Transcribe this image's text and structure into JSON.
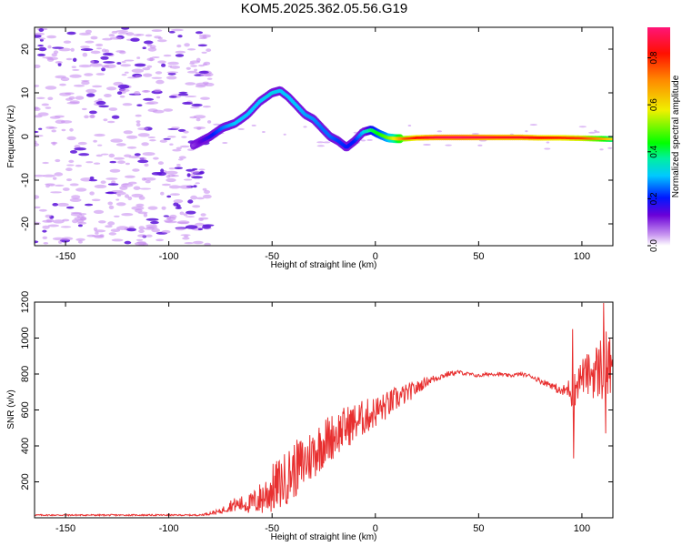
{
  "title": "KOM5.2025.362.05.56.G19",
  "colors": {
    "snr_line": "#e83030",
    "spec_speckle": "#c890f0",
    "spec_core": "#5a10d8"
  },
  "chart_data": [
    {
      "type": "heatmap",
      "name": "spectrogram",
      "xlabel": "Height of straight line (km)",
      "ylabel": "Frequency (Hz)",
      "xlim": [
        -165,
        115
      ],
      "ylim": [
        -25,
        25
      ],
      "xticks": [
        -150,
        -100,
        -50,
        0,
        50,
        100
      ],
      "xtick_labels": [
        "-150",
        "-100",
        "-50",
        "0",
        "50",
        "100"
      ],
      "yticks": [
        -20,
        -10,
        0,
        10,
        20
      ],
      "ytick_labels": [
        "-20",
        "-10",
        "0",
        "10",
        "20"
      ],
      "colorbar": {
        "label": "Normalized spectral amplitude",
        "range": [
          0,
          0.93
        ],
        "ticks": [
          0,
          0.2,
          0.4,
          0.6,
          0.8
        ],
        "tick_labels": [
          "0.0",
          "0.2",
          "0.4",
          "0.6",
          "0.8"
        ]
      },
      "ridge": {
        "x": [
          -88,
          -80,
          -74,
          -68,
          -62,
          -56,
          -50,
          -46,
          -42,
          -38,
          -34,
          -30,
          -26,
          -22,
          -18,
          -14,
          -10,
          -6,
          -2,
          2,
          6,
          10,
          14,
          20,
          30,
          40,
          50,
          60,
          70,
          80,
          90,
          100,
          108,
          115
        ],
        "freq": [
          -2,
          0,
          2,
          3,
          5,
          8,
          10,
          10.5,
          9,
          7,
          5,
          4,
          2,
          0,
          -1,
          -2.5,
          -1,
          1,
          1.5,
          0.5,
          -0.3,
          -0.5,
          -0.5,
          -0.3,
          -0.2,
          -0.2,
          -0.2,
          -0.2,
          -0.2,
          -0.3,
          -0.3,
          -0.4,
          -0.5,
          -0.6
        ],
        "amplitude": [
          0.1,
          0.18,
          0.25,
          0.3,
          0.3,
          0.3,
          0.32,
          0.3,
          0.3,
          0.3,
          0.28,
          0.27,
          0.25,
          0.25,
          0.22,
          0.2,
          0.2,
          0.3,
          0.4,
          0.45,
          0.5,
          0.6,
          0.75,
          0.82,
          0.88,
          0.9,
          0.88,
          0.85,
          0.85,
          0.82,
          0.8,
          0.78,
          0.7,
          0.6
        ]
      }
    },
    {
      "type": "line",
      "name": "snr",
      "xlabel": "Height of straight line (km)",
      "ylabel": "SNR (v/v)",
      "xlim": [
        -165,
        115
      ],
      "ylim": [
        0,
        1200
      ],
      "xticks": [
        -150,
        -100,
        -50,
        0,
        50,
        100
      ],
      "xtick_labels": [
        "-150",
        "-100",
        "-50",
        "0",
        "50",
        "100"
      ],
      "yticks": [
        200,
        400,
        600,
        800,
        1000,
        1200
      ],
      "ytick_labels": [
        "200",
        "400",
        "600",
        "800",
        "1000",
        "1200"
      ],
      "series": [
        {
          "name": "SNR",
          "envelope": {
            "x": [
              -165,
              -85,
              -75,
              -70,
              -60,
              -55,
              -50,
              -45,
              -40,
              -35,
              -30,
              -25,
              -20,
              -15,
              -10,
              -5,
              0,
              5,
              10,
              15,
              20,
              25,
              30,
              35,
              40,
              45,
              50,
              55,
              60,
              65,
              70,
              75,
              80,
              85,
              90,
              94,
              96,
              98,
              100,
              104,
              108,
              111,
              113,
              115
            ],
            "y": [
              15,
              15,
              35,
              70,
              80,
              110,
              160,
              200,
              260,
              300,
              360,
              420,
              460,
              500,
              530,
              560,
              590,
              620,
              660,
              690,
              720,
              760,
              780,
              800,
              810,
              800,
              790,
              800,
              800,
              790,
              800,
              790,
              760,
              740,
              700,
              720,
              680,
              760,
              790,
              800,
              820,
              850,
              830,
              790
            ],
            "jitter": [
              4,
              4,
              15,
              35,
              60,
              100,
              140,
              150,
              160,
              160,
              150,
              140,
              130,
              120,
              110,
              100,
              90,
              80,
              70,
              55,
              40,
              25,
              20,
              15,
              12,
              10,
              10,
              10,
              10,
              10,
              10,
              10,
              15,
              20,
              25,
              60,
              120,
              100,
              100,
              130,
              170,
              220,
              200,
              120
            ]
          },
          "spikes": [
            {
              "x": 96,
              "y": 330
            },
            {
              "x": 95.5,
              "y": 1050
            },
            {
              "x": 110.5,
              "y": 1195
            },
            {
              "x": 111.5,
              "y": 470
            },
            {
              "x": 113,
              "y": 980
            }
          ]
        }
      ]
    }
  ]
}
